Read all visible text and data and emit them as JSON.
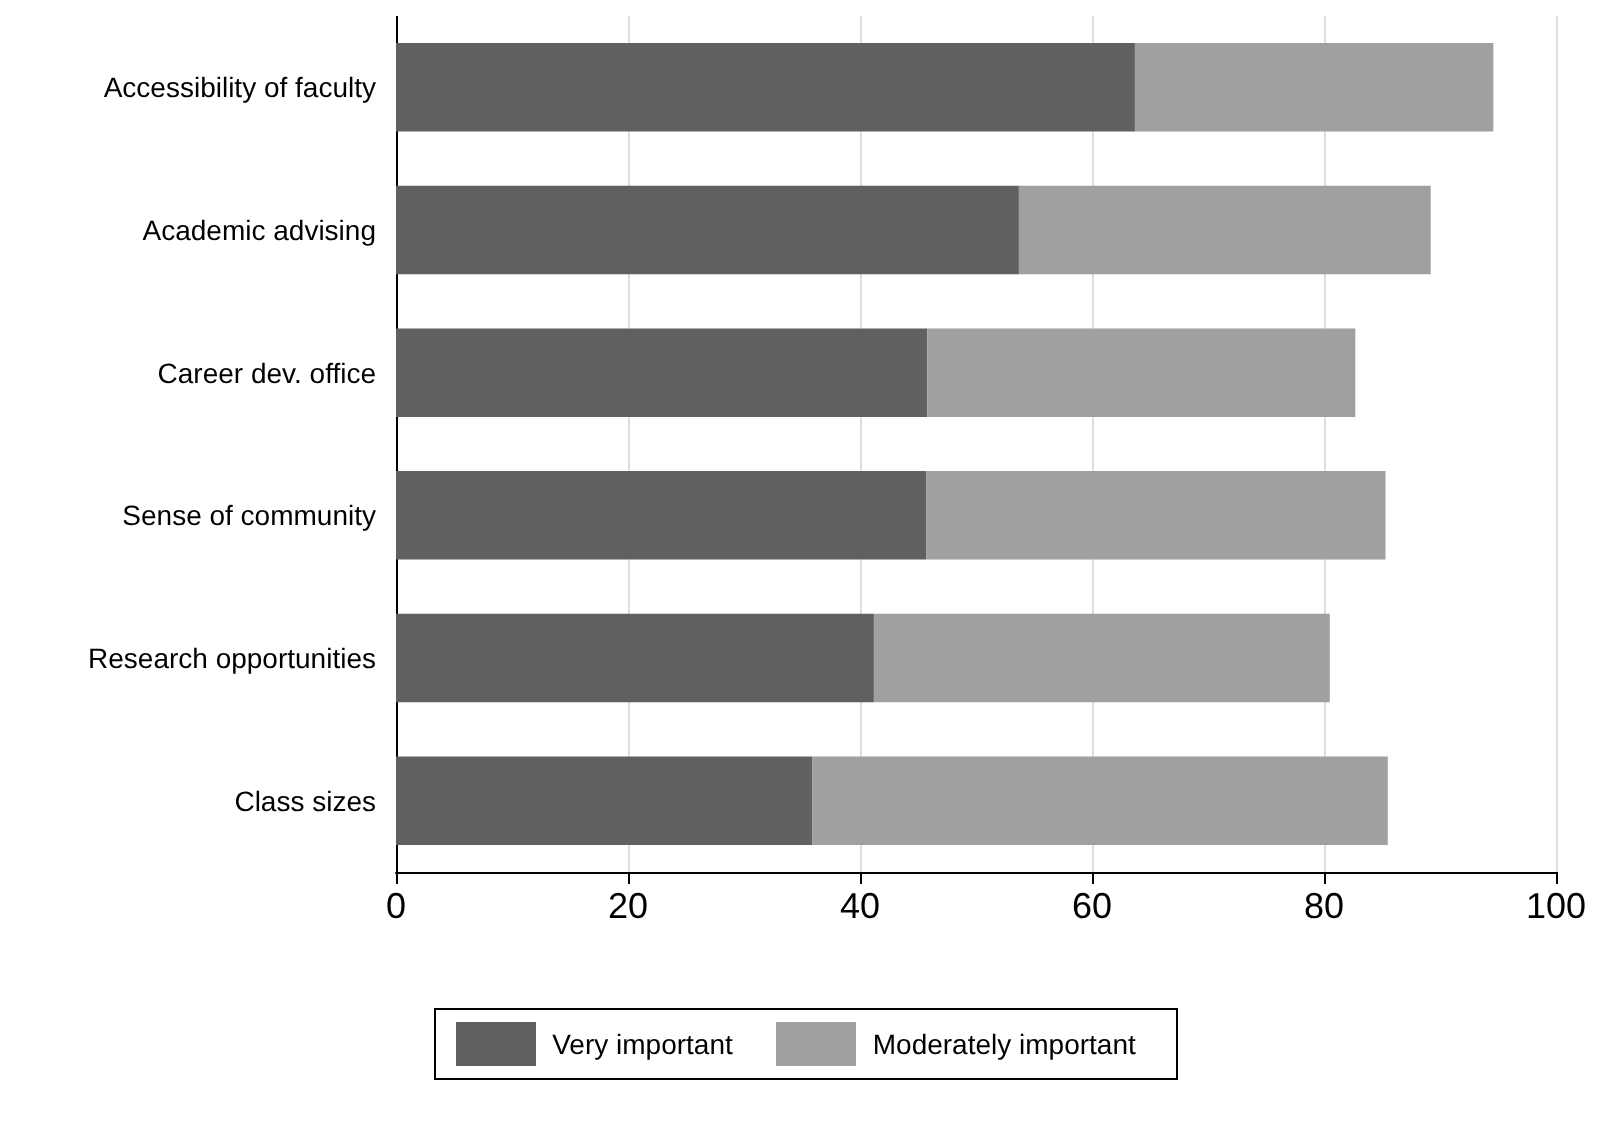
{
  "chart_data": {
    "type": "bar",
    "orientation": "horizontal",
    "stacked": true,
    "categories": [
      "Accessibility of faculty",
      "Academic advising",
      "Career dev. office",
      "Sense of community",
      "Research opportunities",
      "Class sizes"
    ],
    "series": [
      {
        "name": "Very important",
        "color": "#606060",
        "values": [
          63.7,
          53.7,
          45.8,
          45.7,
          41.2,
          35.9
        ]
      },
      {
        "name": "Moderately important",
        "color": "#a0a0a0",
        "values": [
          30.9,
          35.5,
          36.9,
          39.6,
          39.3,
          49.6
        ]
      }
    ],
    "xlim": [
      0,
      100
    ],
    "xticks": [
      0,
      20,
      40,
      60,
      80,
      100
    ],
    "grid": "x",
    "legend": "bottom"
  }
}
